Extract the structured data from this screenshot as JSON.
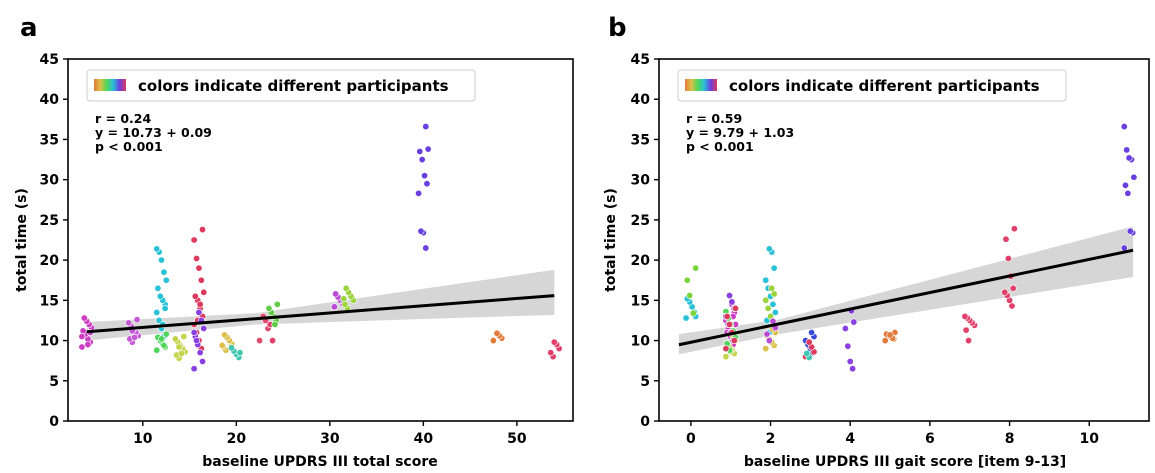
{
  "chart_data": [
    {
      "panel_label": "a",
      "type": "scatter",
      "xlabel": "baseline UPDRS III total score",
      "ylabel": "total time (s)",
      "xlim": [
        2,
        56
      ],
      "ylim": [
        0,
        45
      ],
      "xticks": [
        10,
        20,
        30,
        40,
        50
      ],
      "yticks": [
        0,
        5,
        10,
        15,
        20,
        25,
        30,
        35,
        40,
        45
      ],
      "grid": false,
      "legend": {
        "label": "colors indicate different participants",
        "placement": "top-left"
      },
      "stats": [
        "r = 0.24",
        "y = 10.73 + 0.09",
        "p < 0.001"
      ],
      "regression": {
        "intercept": 10.73,
        "slope": 0.09,
        "ci_low": [
          10.0,
          12.0,
          13.2
        ],
        "ci_high": [
          12.3,
          13.4,
          18.8
        ],
        "ci_x": [
          4,
          22,
          54
        ]
      },
      "series": [
        {
          "x": 4,
          "color": "#cc3fc4",
          "y": [
            9.2,
            9.8,
            10.2,
            10.8,
            11.2,
            11.6,
            12.0,
            12.4,
            12.8,
            10.5,
            11.0,
            9.5
          ]
        },
        {
          "x": 9,
          "color": "#c55ad6",
          "y": [
            9.8,
            10.2,
            10.6,
            11.0,
            11.4,
            11.8,
            12.2,
            12.6,
            10.4,
            11.2
          ]
        },
        {
          "x": 12,
          "color": "#29c1d6",
          "y": [
            10.5,
            11.5,
            12.5,
            13.5,
            14.5,
            15.0,
            15.5,
            16.5,
            17.5,
            18.5,
            20.0,
            21.0,
            21.4,
            14.0,
            12.0
          ]
        },
        {
          "x": 12,
          "color": "#4fd65a",
          "y": [
            8.8,
            9.2,
            9.6,
            10.0,
            10.4,
            10.8,
            9.4,
            10.2
          ]
        },
        {
          "x": 14,
          "color": "#c2d44a",
          "y": [
            7.8,
            8.2,
            8.6,
            9.0,
            9.4,
            9.8,
            10.2,
            10.5,
            8.4,
            9.2
          ]
        },
        {
          "x": 16,
          "color": "#dc3a5c",
          "y": [
            9.0,
            10.0,
            11.0,
            12.0,
            13.0,
            14.0,
            15.0,
            15.5,
            16.0,
            17.5,
            19.0,
            20.2,
            22.5,
            23.8,
            14.5,
            12.5
          ]
        },
        {
          "x": 16,
          "color": "#8a3fe0",
          "y": [
            6.5,
            7.4,
            8.5,
            9.5,
            10.5,
            11.5,
            12.5,
            13.5,
            10.0,
            11.0
          ]
        },
        {
          "x": 19,
          "color": "#dcc04a",
          "y": [
            8.8,
            9.2,
            9.6,
            10.0,
            10.4,
            10.7,
            9.4
          ]
        },
        {
          "x": 20,
          "color": "#3ec6b0",
          "y": [
            7.9,
            8.3,
            8.7,
            9.1,
            8.5
          ]
        },
        {
          "x": 23,
          "color": "#e04a6a",
          "y": [
            10.0,
            11.5,
            12.5,
            13.0
          ]
        },
        {
          "x": 24,
          "color": "#e0406a",
          "y": [
            10.0,
            12.0
          ]
        },
        {
          "x": 24,
          "color": "#62cc4a",
          "y": [
            12.5,
            13.0,
            13.5,
            14.0,
            14.5,
            12.0
          ]
        },
        {
          "x": 31,
          "color": "#b84ad6",
          "y": [
            14.2,
            14.6,
            15.0,
            15.4,
            15.8,
            14.8
          ]
        },
        {
          "x": 32,
          "color": "#9ad43c",
          "y": [
            14.0,
            14.5,
            15.0,
            15.5,
            16.0,
            16.5,
            15.2
          ]
        },
        {
          "x": 40,
          "color": "#6a3fe0",
          "y": [
            21.5,
            23.4,
            23.6,
            28.3,
            29.5,
            30.5,
            32.5,
            33.5,
            33.8,
            36.6
          ]
        },
        {
          "x": 48,
          "color": "#e27a3a",
          "y": [
            10.0,
            10.3,
            10.6,
            10.9
          ]
        },
        {
          "x": 54,
          "color": "#e0406a",
          "y": [
            8.0,
            8.5,
            9.0,
            9.5,
            9.8
          ]
        }
      ]
    },
    {
      "panel_label": "b",
      "type": "scatter",
      "xlabel": "baseline UPDRS III gait score [item 9-13]",
      "ylabel": "total time (s)",
      "xlim": [
        -0.8,
        11.5
      ],
      "ylim": [
        0,
        45
      ],
      "xticks": [
        0,
        2,
        4,
        6,
        8,
        10
      ],
      "yticks": [
        0,
        5,
        10,
        15,
        20,
        25,
        30,
        35,
        40,
        45
      ],
      "grid": false,
      "legend": {
        "label": "colors indicate different participants",
        "placement": "top-left"
      },
      "stats": [
        "r = 0.59",
        "y = 9.79 + 1.03",
        "p < 0.001"
      ],
      "regression": {
        "intercept": 9.79,
        "slope": 1.03,
        "ci_low": [
          8.3,
          10.8,
          17.9
        ],
        "ci_high": [
          10.8,
          12.6,
          24.2
        ],
        "ci_x": [
          -0.3,
          2.2,
          11.1
        ]
      },
      "series": [
        {
          "x": 0,
          "color": "#29c1d6",
          "y": [
            12.8,
            13.5,
            14.2,
            14.8,
            15.2,
            13.0
          ]
        },
        {
          "x": 0,
          "color": "#7ad43c",
          "y": [
            15.6,
            17.5,
            19.0,
            13.4
          ]
        },
        {
          "x": 1,
          "color": "#cc3fc4",
          "y": [
            9.5,
            10.5,
            11.5,
            12.5,
            13.5,
            14.5,
            15.5,
            11.0,
            12.0,
            13.0
          ]
        },
        {
          "x": 1,
          "color": "#c2d44a",
          "y": [
            8.0,
            8.4,
            8.8,
            9.2,
            9.6,
            10.0,
            10.4,
            8.6
          ]
        },
        {
          "x": 1,
          "color": "#4fd65a",
          "y": [
            8.8,
            9.6,
            10.4,
            11.2,
            12.0,
            12.8,
            13.6
          ]
        },
        {
          "x": 1,
          "color": "#8a3fe0",
          "y": [
            10.0,
            11.0,
            12.0,
            13.0,
            14.0,
            14.8,
            15.6
          ]
        },
        {
          "x": 1,
          "color": "#dc3a5c",
          "y": [
            9.0,
            10.0,
            11.0,
            12.0,
            13.0,
            14.0
          ]
        },
        {
          "x": 2,
          "color": "#29c1d6",
          "y": [
            11.0,
            12.5,
            13.5,
            14.5,
            15.5,
            16.5,
            17.5,
            19.0,
            21.0,
            21.4
          ]
        },
        {
          "x": 2,
          "color": "#9ad43c",
          "y": [
            12.0,
            13.0,
            14.0,
            15.0,
            15.8,
            16.5
          ]
        },
        {
          "x": 2,
          "color": "#dcc04a",
          "y": [
            9.0,
            9.4,
            9.8,
            10.2,
            10.6,
            11.0,
            11.4
          ]
        },
        {
          "x": 2,
          "color": "#b84ad6",
          "y": [
            10.0,
            10.8,
            11.6,
            12.4
          ]
        },
        {
          "x": 3,
          "color": "#3a4ad6",
          "y": [
            8.5,
            9.0,
            9.5,
            10.0,
            10.5,
            11.0
          ]
        },
        {
          "x": 3,
          "color": "#dc3a5c",
          "y": [
            8.0,
            8.6,
            9.2,
            9.8
          ]
        },
        {
          "x": 3,
          "color": "#3ec6b0",
          "y": [
            7.9,
            8.4
          ]
        },
        {
          "x": 4,
          "color": "#8a3fe0",
          "y": [
            6.5,
            7.4,
            9.3,
            11.5,
            12.3,
            13.7
          ]
        },
        {
          "x": 5,
          "color": "#e27a3a",
          "y": [
            10.0,
            10.2,
            10.4,
            10.6,
            10.8,
            11.0,
            10.3,
            10.7
          ]
        },
        {
          "x": 7,
          "color": "#e0406a",
          "y": [
            10.0,
            11.3,
            11.9,
            12.2,
            12.5,
            12.8,
            13.0
          ]
        },
        {
          "x": 8,
          "color": "#e0406a",
          "y": [
            14.3,
            15.0,
            15.6,
            16.0,
            16.5,
            18.0,
            20.2,
            22.6,
            23.9
          ]
        },
        {
          "x": 11,
          "color": "#6a3fe0",
          "y": [
            21.5,
            23.4,
            23.6,
            28.3,
            29.3,
            30.3,
            32.5,
            32.7,
            33.7,
            36.6
          ]
        }
      ]
    }
  ]
}
